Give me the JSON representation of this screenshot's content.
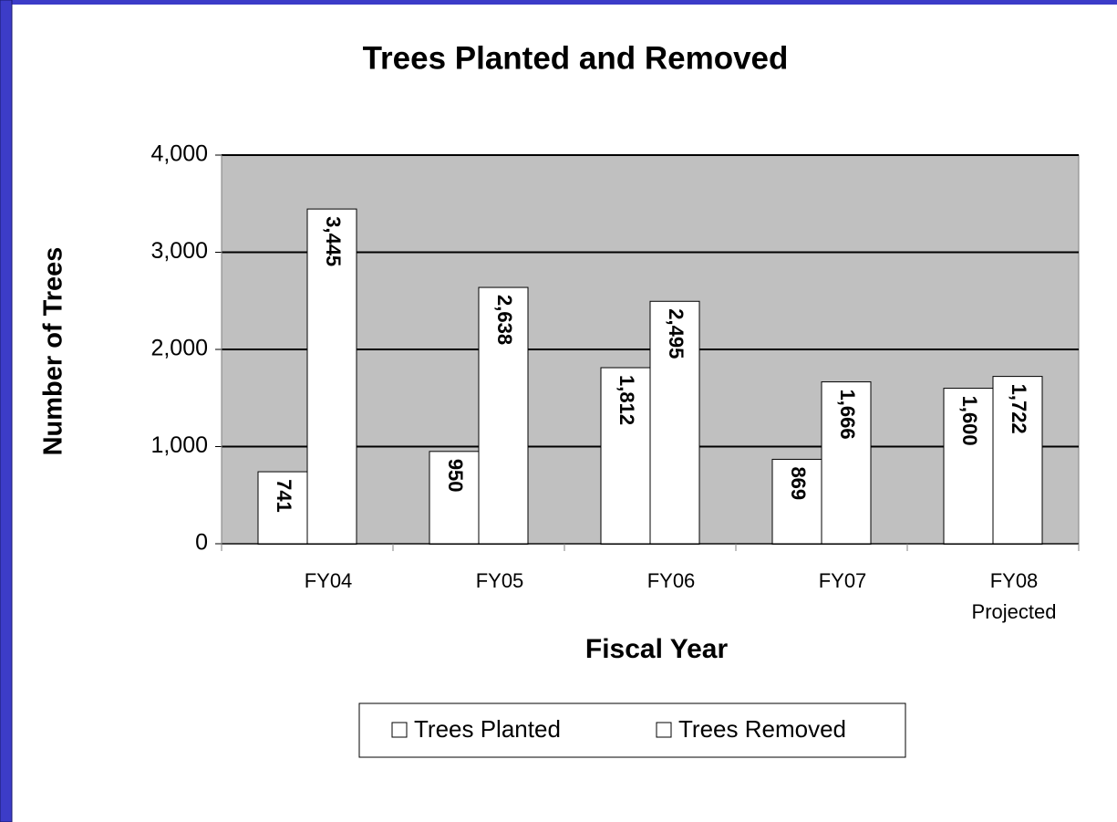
{
  "chart_data": {
    "type": "bar",
    "title": "Trees Planted and Removed",
    "x_label": "Fiscal Year",
    "y_label": "Number of Trees",
    "categories": [
      "FY04",
      "FY05",
      "FY06",
      "FY07",
      "FY08 Projected"
    ],
    "series": [
      {
        "name": "Trees Planted",
        "color": "#ffffff",
        "values": [
          741,
          950,
          1812,
          869,
          1600
        ],
        "value_labels": [
          "741",
          "950",
          "1,812",
          "869",
          "1,600"
        ]
      },
      {
        "name": "Trees Removed",
        "color": "#ffffff",
        "values": [
          3445,
          2638,
          2495,
          1666,
          1722
        ],
        "value_labels": [
          "3,445",
          "2,638",
          "2,495",
          "1,666",
          "1,722"
        ]
      }
    ],
    "ylim": [
      0,
      4000
    ],
    "yticks": [
      0,
      {
        "value": 1000,
        "label": "1,000"
      },
      {
        "value": 2000,
        "label": "2,000"
      },
      {
        "value": 3000,
        "label": "3,000"
      },
      {
        "value": 4000,
        "label": "4,000"
      }
    ],
    "grid": true,
    "plot_background": "#c0c0c0",
    "legend": "bottom"
  }
}
